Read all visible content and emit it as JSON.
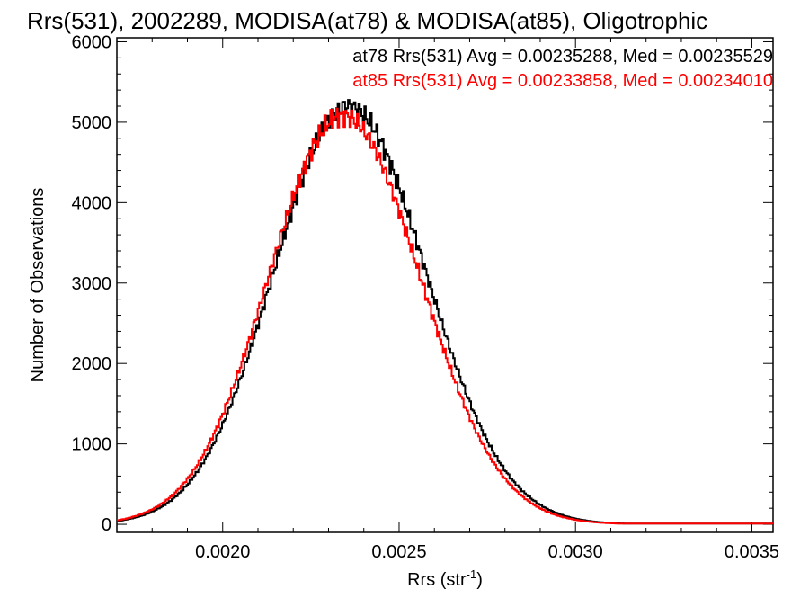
{
  "chart_data": {
    "type": "histogram",
    "title": "Rrs(531), 2002289, MODISA(at78) & MODISA(at85), Oligotrophic",
    "xlabel": "Rrs (str",
    "xlabel_sup": "-1",
    "xlabel_close": ")",
    "ylabel": "Number of Observations",
    "xlim": [
      0.0017,
      0.00356
    ],
    "ylim": [
      -100,
      6050
    ],
    "x_ticks": [
      {
        "value": 0.002,
        "label": "0.0020"
      },
      {
        "value": 0.0025,
        "label": "0.0025"
      },
      {
        "value": 0.003,
        "label": "0.0030"
      },
      {
        "value": 0.0035,
        "label": "0.0035"
      }
    ],
    "y_ticks": [
      {
        "value": 0,
        "label": "0"
      },
      {
        "value": 1000,
        "label": "1000"
      },
      {
        "value": 2000,
        "label": "2000"
      },
      {
        "value": 3000,
        "label": "3000"
      },
      {
        "value": 4000,
        "label": "4000"
      },
      {
        "value": 5000,
        "label": "5000"
      },
      {
        "value": 6000,
        "label": "6000"
      }
    ],
    "grid": false,
    "legend_position": "top-right",
    "series": [
      {
        "name": "at78",
        "color": "#000000",
        "legend": "at78 Rrs(531) Avg = 0.00235288, Med = 0.00235529",
        "mean": 0.00235529,
        "sigma_left": 0.00021,
        "sigma_right": 0.00022,
        "peak": 5200
      },
      {
        "name": "at85",
        "color": "#ff0000",
        "legend": "at85 Rrs(531) Avg = 0.00233858, Med = 0.00234010",
        "mean": 0.0023401,
        "sigma_left": 0.00021,
        "sigma_right": 0.00022,
        "peak": 5080
      }
    ]
  }
}
